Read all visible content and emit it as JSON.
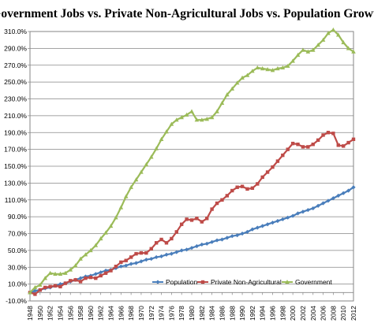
{
  "chart_data": {
    "type": "line",
    "title": "Government Jobs vs. Private Non-Agricultural  Jobs vs. Population Growth",
    "xlabel": "",
    "ylabel": "",
    "ylim": [
      -10,
      310
    ],
    "y_ticks": [
      -10,
      10,
      30,
      50,
      70,
      90,
      110,
      130,
      150,
      170,
      190,
      210,
      230,
      250,
      270,
      290,
      310
    ],
    "y_tick_labels": [
      "-10.0%",
      "10.0%",
      "30.0%",
      "50.0%",
      "70.0%",
      "90.0%",
      "110.0%",
      "130.0%",
      "150.0%",
      "170.0%",
      "190.0%",
      "210.0%",
      "230.0%",
      "250.0%",
      "270.0%",
      "290.0%",
      "310.0%"
    ],
    "x_ticks": [
      1948,
      1950,
      1952,
      1954,
      1956,
      1958,
      1960,
      1962,
      1964,
      1966,
      1968,
      1970,
      1972,
      1974,
      1976,
      1978,
      1980,
      1982,
      1984,
      1986,
      1988,
      1990,
      1992,
      1994,
      1996,
      1998,
      2000,
      2002,
      2004,
      2006,
      2008,
      2010,
      2012
    ],
    "x_tick_labels": [
      "1948",
      "1950",
      "1952",
      "1954",
      "1956",
      "1958",
      "1960",
      "1962",
      "1964",
      "1966",
      "1968",
      "1970",
      "1972",
      "1974",
      "1976",
      "1978",
      "1980",
      "1982",
      "1984",
      "1986",
      "1988",
      "1990",
      "1992",
      "1994",
      "1996",
      "1998",
      "2000",
      "2002",
      "2004",
      "2006",
      "2008",
      "2010",
      "2012"
    ],
    "xlim": [
      1948,
      2012
    ],
    "grid": true,
    "legend_position": "bottom-right",
    "x": [
      1948,
      1949,
      1950,
      1951,
      1952,
      1953,
      1954,
      1955,
      1956,
      1957,
      1958,
      1959,
      1960,
      1961,
      1962,
      1963,
      1964,
      1965,
      1966,
      1967,
      1968,
      1969,
      1970,
      1971,
      1972,
      1973,
      1974,
      1975,
      1976,
      1977,
      1978,
      1979,
      1980,
      1981,
      1982,
      1983,
      1984,
      1985,
      1986,
      1987,
      1988,
      1989,
      1990,
      1991,
      1992,
      1993,
      1994,
      1995,
      1996,
      1997,
      1998,
      1999,
      2000,
      2001,
      2002,
      2003,
      2004,
      2005,
      2006,
      2007,
      2008,
      2009,
      2010,
      2011,
      2012
    ],
    "series": [
      {
        "name": "Population",
        "color": "#4a7ebb",
        "marker": "diamond",
        "values": [
          0,
          2,
          3,
          5,
          6,
          8,
          10,
          11,
          13,
          15,
          17,
          19,
          20,
          22,
          24,
          26,
          27,
          29,
          31,
          32,
          34,
          35,
          37,
          39,
          40,
          42,
          43,
          45,
          46,
          48,
          50,
          51,
          53,
          55,
          57,
          58,
          60,
          62,
          63,
          65,
          67,
          68,
          70,
          72,
          75,
          77,
          79,
          81,
          83,
          85,
          87,
          89,
          91,
          94,
          96,
          98,
          100,
          103,
          106,
          109,
          112,
          115,
          118,
          121,
          125
        ]
      },
      {
        "name": "Private Non-Agricultural",
        "color": "#be4b48",
        "marker": "square",
        "values": [
          0,
          -2,
          3,
          6,
          7,
          8,
          7,
          11,
          14,
          15,
          13,
          17,
          18,
          17,
          20,
          23,
          26,
          31,
          36,
          38,
          42,
          46,
          47,
          47,
          52,
          59,
          63,
          59,
          64,
          72,
          81,
          87,
          86,
          88,
          84,
          88,
          99,
          106,
          110,
          115,
          121,
          125,
          126,
          123,
          124,
          129,
          137,
          143,
          149,
          156,
          163,
          170,
          177,
          176,
          173,
          173,
          176,
          181,
          187,
          190,
          189,
          175,
          174,
          178,
          182
        ]
      },
      {
        "name": "Government",
        "color": "#9bbb59",
        "marker": "triangle",
        "values": [
          0,
          6,
          9,
          17,
          23,
          22,
          22,
          23,
          27,
          32,
          40,
          45,
          50,
          56,
          64,
          71,
          79,
          89,
          101,
          114,
          125,
          134,
          143,
          152,
          161,
          171,
          182,
          191,
          200,
          205,
          208,
          211,
          215,
          205,
          205,
          206,
          208,
          215,
          225,
          235,
          242,
          249,
          255,
          258,
          263,
          267,
          266,
          265,
          264,
          266,
          267,
          269,
          275,
          282,
          288,
          286,
          288,
          294,
          300,
          308,
          312,
          306,
          297,
          290,
          286
        ]
      }
    ]
  }
}
